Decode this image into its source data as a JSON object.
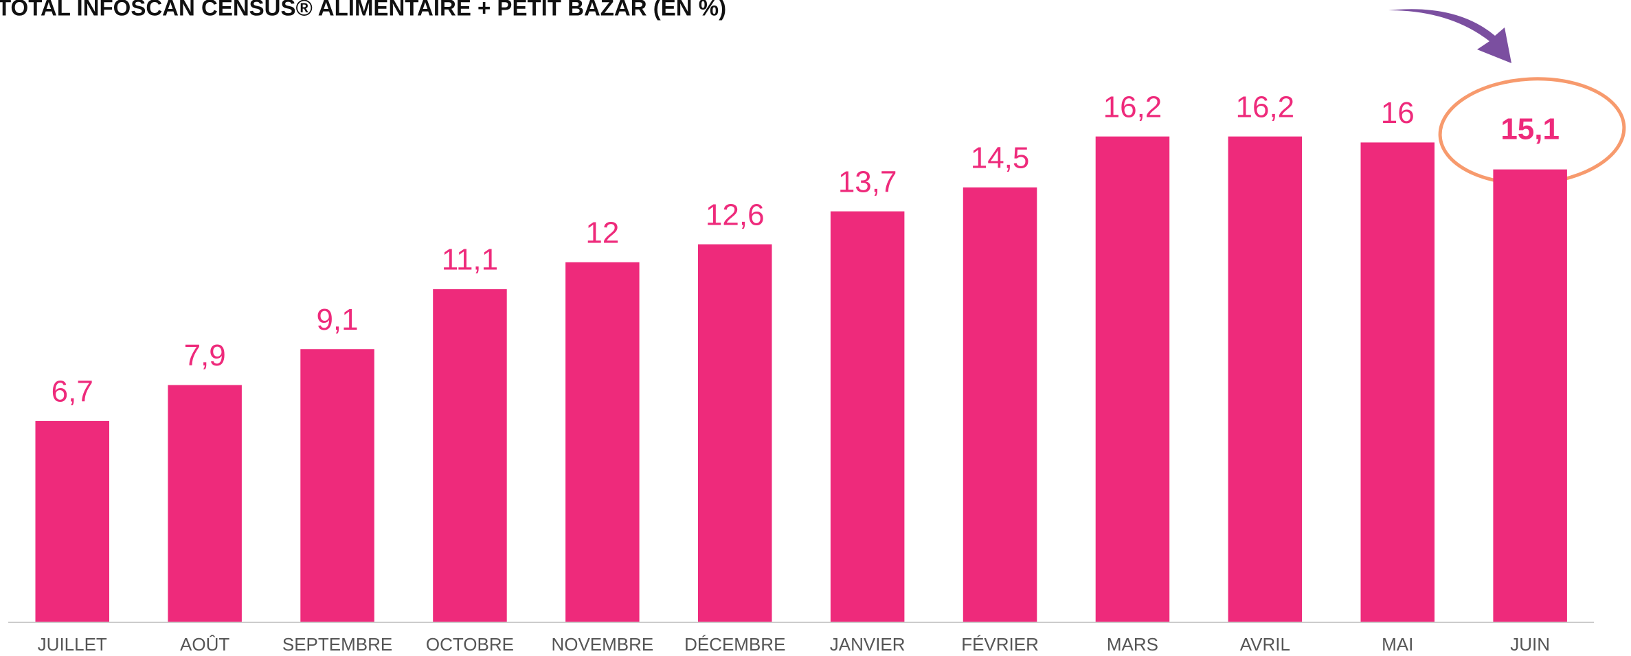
{
  "chart_data": {
    "type": "bar",
    "title": "TOTAL INFOSCAN CENSUS® ALIMENTAIRE + PETIT BAZAR (EN %)",
    "categories": [
      "JUILLET",
      "AOÛT",
      "SEPTEMBRE",
      "OCTOBRE",
      "NOVEMBRE",
      "DÉCEMBRE",
      "JANVIER",
      "FÉVRIER",
      "MARS",
      "AVRIL",
      "MAI",
      "JUIN"
    ],
    "values": [
      6.7,
      7.9,
      9.1,
      11.1,
      12,
      12.6,
      13.7,
      14.5,
      16.2,
      16.2,
      16,
      15.1
    ],
    "value_labels": [
      "6,7",
      "7,9",
      "9,1",
      "11,1",
      "12",
      "12,6",
      "13,7",
      "14,5",
      "16,2",
      "16,2",
      "16",
      "15,1"
    ],
    "color": "#ee2a7b"
  }
}
